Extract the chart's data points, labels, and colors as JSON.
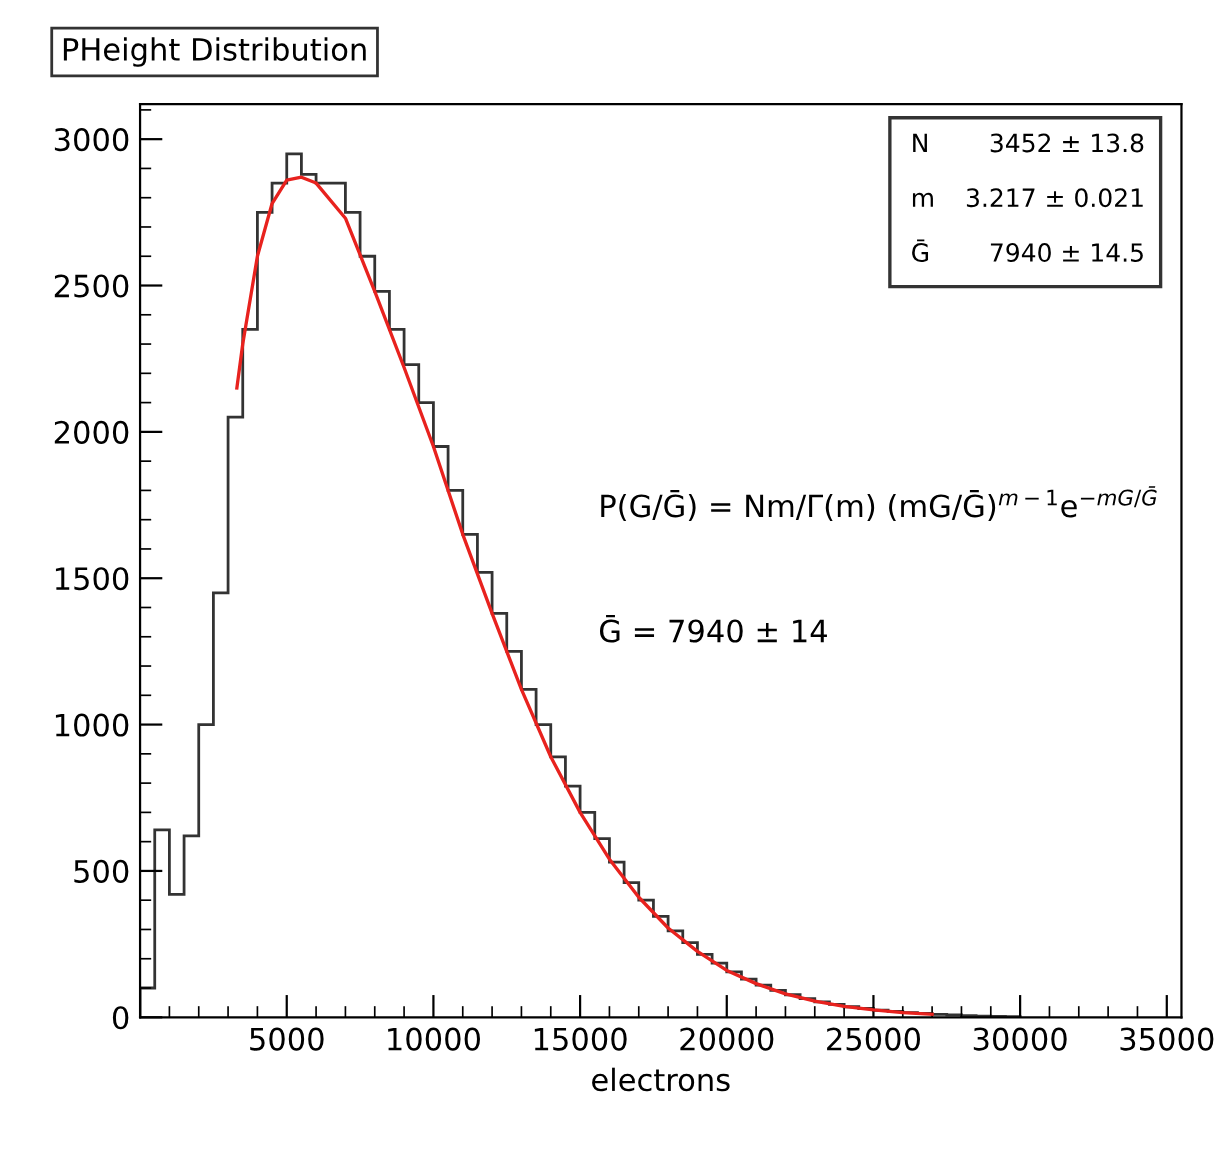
{
  "chart_data": {
    "type": "histogram",
    "title": "PHeight Distribution",
    "xlabel": "electrons",
    "bins": [
      0,
      500,
      1000,
      1500,
      2000,
      2500,
      3000,
      3500,
      4000,
      4500,
      5000,
      5500,
      6000,
      6500,
      7000,
      7500,
      8000,
      8500,
      9000,
      9500,
      10000,
      10500,
      11000,
      11500,
      12000,
      12500,
      13000,
      13500,
      14000,
      14500,
      15000,
      15500,
      16000,
      16500,
      17000,
      17500,
      18000,
      18500,
      19000,
      19500,
      20000,
      20500,
      21000,
      21500,
      22000,
      22500,
      23000,
      23500,
      24000,
      24500,
      25000,
      25500,
      26000,
      26500,
      27000,
      27500,
      28000,
      28500,
      29000,
      29500,
      30000
    ],
    "series": [
      {
        "color": "#333333",
        "values": [
          100,
          640,
          420,
          620,
          1000,
          1450,
          2050,
          2350,
          2750,
          2850,
          2950,
          2880,
          2850,
          2850,
          2750,
          2600,
          2480,
          2350,
          2230,
          2100,
          1950,
          1800,
          1650,
          1520,
          1380,
          1250,
          1120,
          1000,
          890,
          790,
          700,
          610,
          530,
          460,
          400,
          345,
          295,
          255,
          215,
          185,
          155,
          130,
          110,
          92,
          77,
          64,
          53,
          44,
          36,
          30,
          24,
          20,
          16,
          13,
          10,
          8,
          6,
          4,
          3,
          2
        ]
      },
      {
        "type": "line",
        "color": "#e8221e",
        "x": [
          3300,
          3500,
          4000,
          4500,
          5000,
          5500,
          6000,
          7000,
          8000,
          9000,
          10000,
          11000,
          12000,
          13000,
          14000,
          15000,
          16000,
          17000,
          18000,
          19000,
          20000,
          21000,
          22000,
          23000,
          24000,
          25000,
          26000,
          27000
        ],
        "values": [
          2150,
          2300,
          2600,
          2780,
          2860,
          2870,
          2850,
          2730,
          2480,
          2220,
          1950,
          1650,
          1380,
          1120,
          890,
          700,
          540,
          410,
          305,
          225,
          160,
          115,
          80,
          55,
          37,
          25,
          16,
          10
        ]
      }
    ],
    "xlim": [
      0,
      35500
    ],
    "ylim": [
      0,
      3120
    ],
    "xticks": [
      5000,
      10000,
      15000,
      20000,
      25000,
      30000,
      35000
    ],
    "yticks": [
      0,
      500,
      1000,
      1500,
      2000,
      2500,
      3000
    ],
    "annotations": [
      "N 3452 ± 13.8",
      "m 3.217 ± 0.021",
      "Ḡ 7940 ± 14.5",
      "P(G/Ḡ) = Nm/Γ(m) (mG/Ḡ)$^{m−1}$e$^{−mG/Ḡ}$",
      "Ḡ = 7940 ± 14"
    ],
    "grid": false,
    "legend": false
  }
}
